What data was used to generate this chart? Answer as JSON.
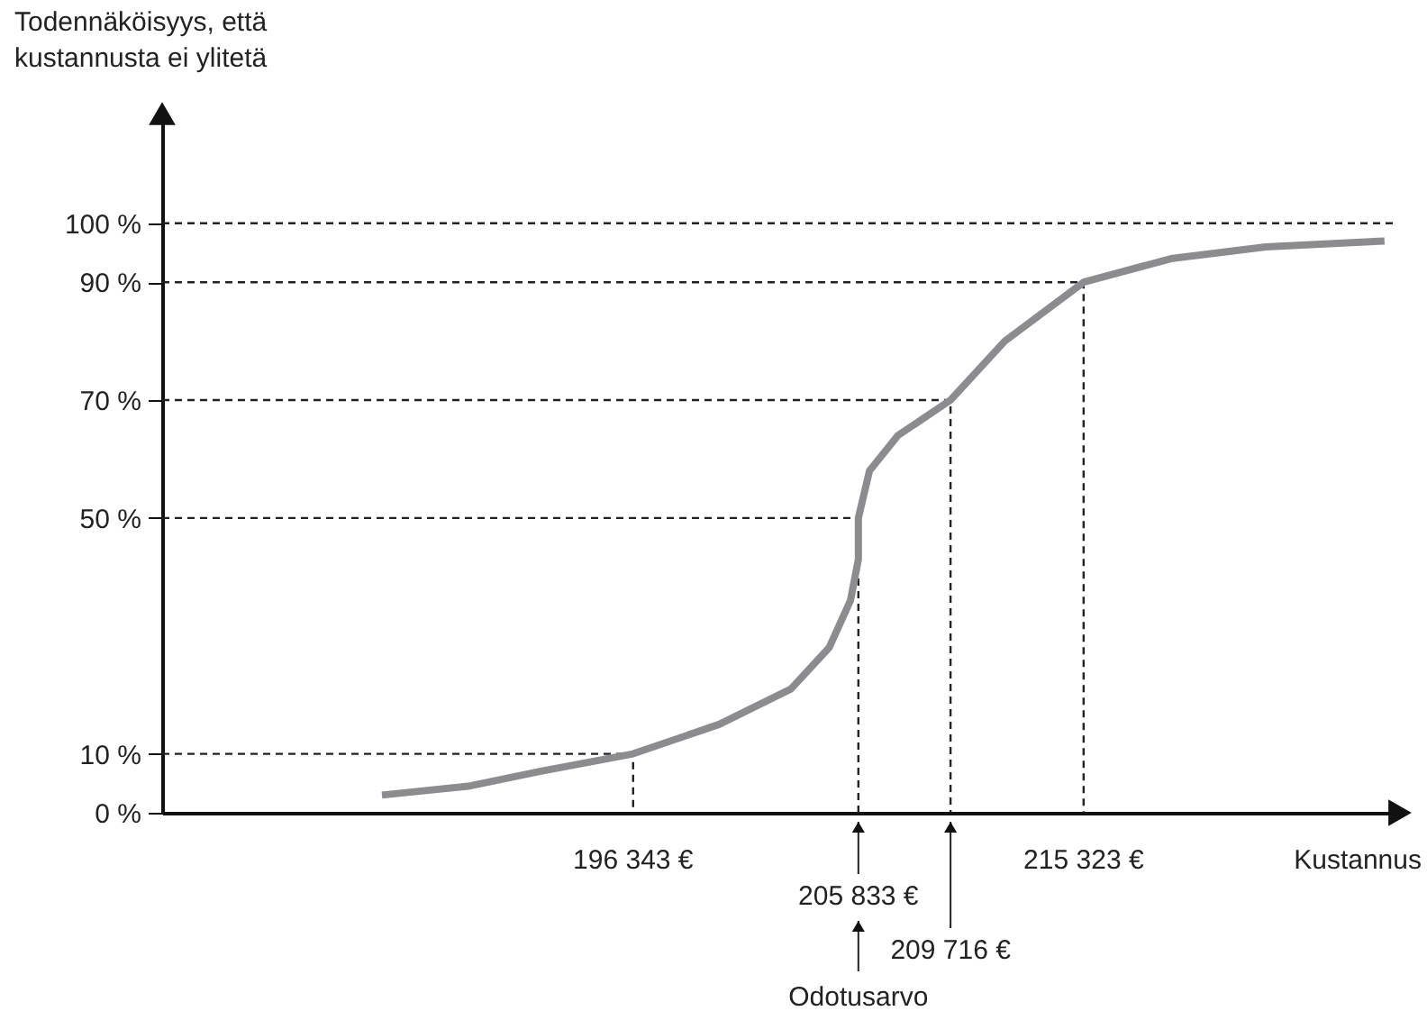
{
  "chart_data": {
    "type": "line",
    "ylabel": "Todennäköisyys, että\nkustannusta ei ylitetä",
    "xlabel": "Kustannus",
    "xlim": [
      176500,
      228500
    ],
    "ylim": [
      0,
      118
    ],
    "xticks": [
      {
        "value": 196343,
        "label": "196 343 €"
      },
      {
        "value": 215323,
        "label": "215 323 €"
      }
    ],
    "yticks": [
      {
        "value": 0,
        "label": "0 %"
      },
      {
        "value": 10,
        "label": "10 %"
      },
      {
        "value": 50,
        "label": "50 %"
      },
      {
        "value": 70,
        "label": "70 %"
      },
      {
        "value": 90,
        "label": "90 %"
      },
      {
        "value": 100,
        "label": "100 %"
      }
    ],
    "grid": false,
    "marker": "none",
    "line_style": "solid",
    "series": [
      {
        "color": "#222222",
        "line_style": "dashed",
        "x": [
          176500,
          196343,
          196343
        ],
        "values": [
          10,
          10,
          0
        ]
      },
      {
        "color": "#222222",
        "line_style": "dashed",
        "x": [
          176500,
          205833,
          205833
        ],
        "values": [
          50,
          50,
          0
        ]
      },
      {
        "color": "#222222",
        "line_style": "dashed",
        "x": [
          176500,
          209716,
          209716
        ],
        "values": [
          70,
          70,
          0
        ]
      },
      {
        "color": "#222222",
        "line_style": "dashed",
        "x": [
          176500,
          215323,
          215323
        ],
        "values": [
          90,
          90,
          0
        ]
      },
      {
        "color": "#8c8c8e",
        "x": [
          185760,
          189390,
          192410,
          196343,
          199970,
          202990,
          204600,
          205500,
          205833,
          205833,
          206300,
          207500,
          209716,
          212000,
          215323,
          219000,
          223000,
          228000
        ],
        "values": [
          3,
          4.5,
          7,
          10,
          15,
          21,
          28,
          36,
          43,
          50,
          58,
          64,
          70,
          80,
          90,
          94,
          96,
          97
        ]
      }
    ],
    "ref_lines": [
      {
        "axis": "y",
        "value": 100,
        "line_style": "dashed",
        "color": "#222222"
      }
    ],
    "annotations": [
      {
        "text": "205 833 €",
        "x": 205833,
        "y": 0
      },
      {
        "text": "209 716 €",
        "x": 209716,
        "y": 0
      },
      "Odotusarvo"
    ]
  }
}
